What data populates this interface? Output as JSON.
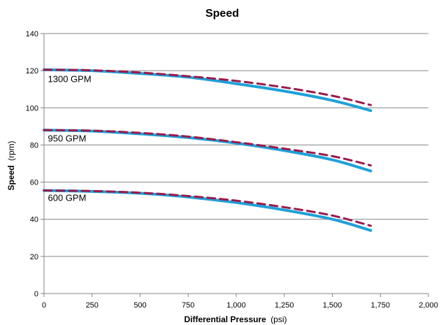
{
  "chart_data": {
    "type": "line",
    "title": "Speed",
    "xlabel": {
      "main": "Differential Pressure",
      "unit": "(psi)"
    },
    "ylabel": {
      "main": "Speed",
      "unit": "(rpm)"
    },
    "xlim": [
      0,
      2000
    ],
    "ylim": [
      0,
      140
    ],
    "x_ticks": [
      0,
      250,
      500,
      750,
      1000,
      1250,
      1500,
      1750,
      2000
    ],
    "x_tick_labels": [
      "0",
      "250",
      "500",
      "750",
      "1,000",
      "1,250",
      "1,500",
      "1,750",
      "2,000"
    ],
    "y_ticks": [
      0,
      20,
      40,
      60,
      80,
      100,
      120,
      140
    ],
    "y_tick_labels": [
      "0",
      "20",
      "40",
      "60",
      "80",
      "100",
      "120",
      "140"
    ],
    "grid": {
      "horizontal": true,
      "vertical": false
    },
    "legend": "none",
    "colors": {
      "solid": "#1fa0d8",
      "dashed": "#9b1a4a",
      "grid": "#868686",
      "axis": "#868686"
    },
    "series": [
      {
        "group": "1300 GPM",
        "style": "solid",
        "x": [
          0,
          250,
          500,
          750,
          1000,
          1250,
          1500,
          1700
        ],
        "y": [
          120.5,
          120.0,
          118.5,
          116.5,
          113.0,
          109.0,
          104.0,
          98.5
        ]
      },
      {
        "group": "1300 GPM",
        "style": "dashed",
        "x": [
          0,
          250,
          500,
          750,
          1000,
          1250,
          1500,
          1700
        ],
        "y": [
          120.5,
          120.2,
          119.0,
          117.0,
          114.5,
          111.0,
          106.5,
          101.5
        ]
      },
      {
        "group": "950 GPM",
        "style": "solid",
        "x": [
          0,
          250,
          500,
          750,
          1000,
          1250,
          1500,
          1700
        ],
        "y": [
          88.0,
          87.5,
          86.0,
          84.0,
          81.0,
          77.0,
          72.0,
          66.0
        ]
      },
      {
        "group": "950 GPM",
        "style": "dashed",
        "x": [
          0,
          250,
          500,
          750,
          1000,
          1250,
          1500,
          1700
        ],
        "y": [
          88.0,
          87.7,
          86.5,
          84.5,
          81.5,
          78.0,
          74.0,
          69.0
        ]
      },
      {
        "group": "600 GPM",
        "style": "solid",
        "x": [
          0,
          250,
          500,
          750,
          1000,
          1250,
          1500,
          1700
        ],
        "y": [
          55.5,
          55.0,
          54.0,
          52.0,
          49.0,
          45.0,
          40.0,
          34.0
        ]
      },
      {
        "group": "600 GPM",
        "style": "dashed",
        "x": [
          0,
          250,
          500,
          750,
          1000,
          1250,
          1500,
          1700
        ],
        "y": [
          55.5,
          55.2,
          54.3,
          52.5,
          50.0,
          46.5,
          42.0,
          36.5
        ]
      }
    ],
    "annotations": [
      {
        "text": "1300 GPM",
        "x": 20,
        "y": 113.8
      },
      {
        "text": "950 GPM",
        "x": 20,
        "y": 81.8
      },
      {
        "text": "600 GPM",
        "x": 20,
        "y": 49.8
      }
    ]
  }
}
